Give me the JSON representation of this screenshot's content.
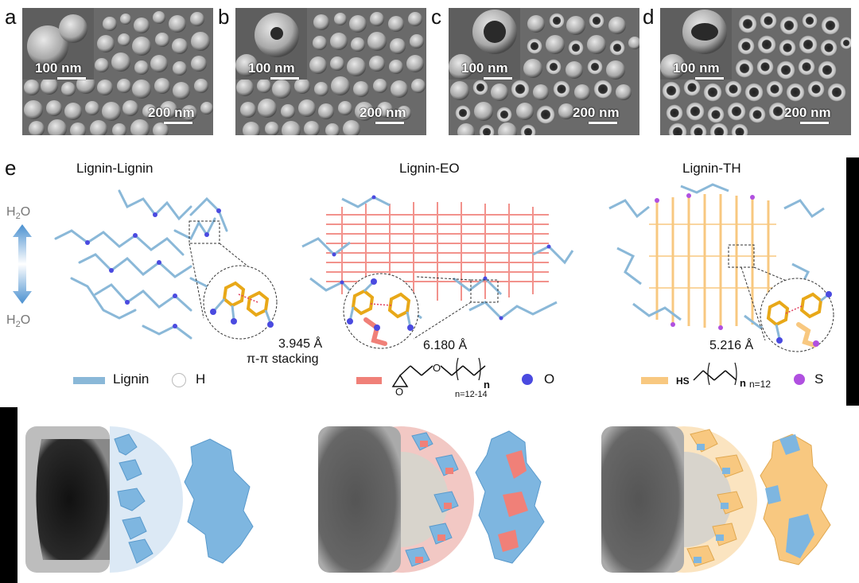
{
  "panels_sem": [
    {
      "letter": "a",
      "inset_scale": "100 nm",
      "main_scale": "200 nm"
    },
    {
      "letter": "b",
      "inset_scale": "100 nm",
      "main_scale": "200 nm"
    },
    {
      "letter": "c",
      "inset_scale": "100 nm",
      "main_scale": "200 nm"
    },
    {
      "letter": "d",
      "inset_scale": "100 nm",
      "main_scale": "200 nm"
    }
  ],
  "panel_e": {
    "letter": "e",
    "water_label_top": "H",
    "water_label_bottom": "H",
    "water_sub": "2",
    "water_o": "O",
    "models": [
      {
        "title": "Lignin-Lignin",
        "distance": "3.945 Å",
        "note": "π-π stacking"
      },
      {
        "title": "Lignin-EO",
        "distance": "6.180 Å"
      },
      {
        "title": "Lignin-TH",
        "distance": "5.216 Å"
      }
    ],
    "legend": {
      "lignin": "Lignin",
      "h": "H",
      "o": "O",
      "s": "S",
      "eo_n": "n",
      "eo_range": "n=12-14",
      "th_hs": "HS",
      "th_n": "n",
      "th_range": "n=12"
    },
    "colors": {
      "lignin": "#8ab8d8",
      "eo": "#f08078",
      "th": "#f8c880",
      "o": "#4a4ae0",
      "s": "#b050e0"
    }
  }
}
